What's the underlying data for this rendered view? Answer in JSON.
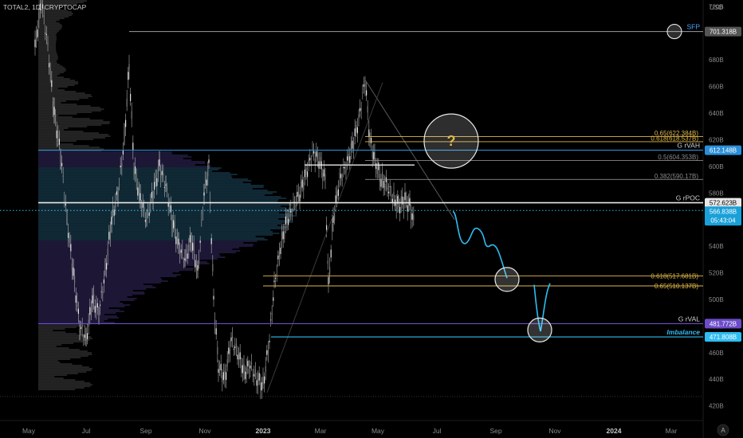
{
  "header": {
    "symbol_label": "TOTAL2, 1D, CRYPTOCAP"
  },
  "chart_data": {
    "type": "candlestick",
    "currency_label": "USD",
    "y_ticks": [
      420,
      440,
      460,
      480,
      500,
      520,
      540,
      560,
      580,
      600,
      620,
      640,
      660,
      680,
      700,
      720
    ],
    "y_tick_suffix": "B",
    "ylim": [
      409,
      725
    ],
    "x_ticks": [
      "May",
      "Jul",
      "Sep",
      "Nov",
      "2023",
      "Mar",
      "May",
      "Jul",
      "Sep",
      "Nov",
      "2024",
      "Mar"
    ],
    "price_line": {
      "value": 566.838,
      "label": "566.838B",
      "countdown": "05:43:04",
      "color": "#2ebdf2"
    },
    "levels": [
      {
        "name": "SFP",
        "value": 701.318,
        "badge": "701.318B",
        "label": "SFP",
        "color": "#8a8a8a",
        "label_color": "#4aa3ff",
        "badge_bg": "#555555"
      },
      {
        "name": "G rVAH",
        "value": 612.148,
        "badge": "612.148B",
        "label": "G rVAH",
        "color": "#2a8fd8",
        "label_color": "#d0d0d0",
        "badge_bg": "#2a8fd8"
      },
      {
        "name": "G rPOC",
        "value": 572.623,
        "badge": "572.623B",
        "label": "G rPOC",
        "color": "#e8e8e8",
        "label_color": "#d0d0d0",
        "badge_bg": "#e8e8e8"
      },
      {
        "name": "G rVAL",
        "value": 481.772,
        "badge": "481.772B",
        "label": "G rVAL",
        "color": "#6c4cc8",
        "label_color": "#d0d0d0",
        "badge_bg": "#6c4cc8"
      },
      {
        "name": "Imbalance",
        "value": 471.808,
        "badge": "471.808B",
        "label": "Imbalance",
        "color": "#2ebdf2",
        "label_color": "#2ebdf2",
        "badge_bg": "#2ebdf2"
      }
    ],
    "fib_upper": [
      {
        "label": "0.65(622.384B)",
        "value": 622.384,
        "color": "#e0b84a"
      },
      {
        "label": "0.618(618.537B)",
        "value": 618.537,
        "color": "#e0b84a"
      },
      {
        "label": "0.5(604.353B)",
        "value": 604.353,
        "color": "#8a8a8a"
      },
      {
        "label": "0.382(590.17B)",
        "value": 590.17,
        "color": "#8a8a8a"
      }
    ],
    "fib_lower": [
      {
        "label": "0.618(517.681B)",
        "value": 517.681,
        "color": "#e0b84a"
      },
      {
        "label": "0.65(510.137B)",
        "value": 510.137,
        "color": "#e0b84a"
      }
    ],
    "annotation": {
      "question": "?"
    },
    "footer": {
      "auto_label": "A"
    }
  }
}
